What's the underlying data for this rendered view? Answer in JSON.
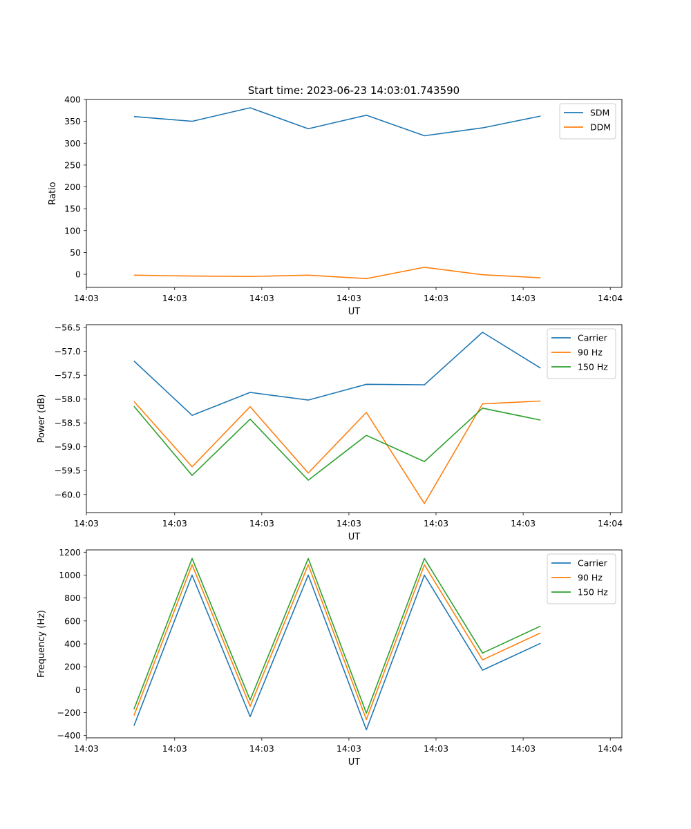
{
  "figure": {
    "title": "Start time: 2023-06-23 14:03:01.743590"
  },
  "colors": {
    "blue": "#1f77b4",
    "orange": "#ff7f0e",
    "green": "#2ca02c"
  },
  "chart_data": [
    {
      "type": "line",
      "title": "Start time: 2023-06-23 14:03:01.743590",
      "xlabel": "UT",
      "ylabel": "Ratio",
      "x": [
        1,
        2,
        3,
        4,
        5,
        6,
        7,
        8
      ],
      "xlim": [
        0.18,
        9.4
      ],
      "xticks": [
        0.18,
        1.7,
        3.2,
        4.7,
        6.2,
        7.7,
        9.2
      ],
      "xticklabels": [
        "14:03",
        "14:03",
        "14:03",
        "14:03",
        "14:03",
        "14:03",
        "14:04"
      ],
      "ylim": [
        -30,
        400
      ],
      "yticks": [
        0,
        50,
        100,
        150,
        200,
        250,
        300,
        350,
        400
      ],
      "yticklabels": [
        "0",
        "50",
        "100",
        "150",
        "200",
        "250",
        "300",
        "350",
        "400"
      ],
      "legend": "top-right",
      "series": [
        {
          "name": "SDM",
          "color": "#1f77b4",
          "values": [
            361,
            350,
            381,
            333,
            364,
            317,
            335,
            362
          ]
        },
        {
          "name": "DDM",
          "color": "#ff7f0e",
          "values": [
            -2,
            -4,
            -5,
            -2,
            -10,
            16,
            -1,
            -8
          ]
        }
      ]
    },
    {
      "type": "line",
      "xlabel": "UT",
      "ylabel": "Power (dB)",
      "x": [
        1,
        2,
        3,
        4,
        5,
        6,
        7,
        8
      ],
      "xlim": [
        0.18,
        9.4
      ],
      "xticks": [
        0.18,
        1.7,
        3.2,
        4.7,
        6.2,
        7.7,
        9.2
      ],
      "xticklabels": [
        "14:03",
        "14:03",
        "14:03",
        "14:03",
        "14:03",
        "14:03",
        "14:04"
      ],
      "ylim": [
        -60.38,
        -56.44
      ],
      "yticks": [
        -56.5,
        -57,
        -57.5,
        -58,
        -58.5,
        -59,
        -59.5,
        -60
      ],
      "yticklabels": [
        "−56.5",
        "−57.0",
        "−57.5",
        "−58.0",
        "−58.5",
        "−59.0",
        "−59.5",
        "−60.0"
      ],
      "legend": "top-right",
      "series": [
        {
          "name": "Carrier",
          "color": "#1f77b4",
          "values": [
            -57.2,
            -58.34,
            -57.86,
            -58.02,
            -57.69,
            -57.7,
            -56.6,
            -57.35
          ]
        },
        {
          "name": "90 Hz",
          "color": "#ff7f0e",
          "values": [
            -58.05,
            -59.42,
            -58.16,
            -59.55,
            -58.28,
            -60.19,
            -58.1,
            -58.04
          ]
        },
        {
          "name": "150 Hz",
          "color": "#2ca02c",
          "values": [
            -58.15,
            -59.6,
            -58.42,
            -59.7,
            -58.76,
            -59.31,
            -58.19,
            -58.44
          ]
        }
      ]
    },
    {
      "type": "line",
      "xlabel": "UT",
      "ylabel": "Frequency (Hz)",
      "x": [
        1,
        2,
        3,
        4,
        5,
        6,
        7,
        8
      ],
      "xlim": [
        0.18,
        9.4
      ],
      "xticks": [
        0.18,
        1.7,
        3.2,
        4.7,
        6.2,
        7.7,
        9.2
      ],
      "xticklabels": [
        "14:03",
        "14:03",
        "14:03",
        "14:03",
        "14:03",
        "14:03",
        "14:04"
      ],
      "ylim": [
        -420,
        1220
      ],
      "yticks": [
        -400,
        -200,
        0,
        200,
        400,
        600,
        800,
        1000,
        1200
      ],
      "yticklabels": [
        "−400",
        "−200",
        "0",
        "200",
        "400",
        "600",
        "800",
        "1000",
        "1200"
      ],
      "legend": "top-right",
      "series": [
        {
          "name": "Carrier",
          "color": "#1f77b4",
          "values": [
            -315,
            1000,
            -235,
            1000,
            -350,
            1000,
            170,
            405
          ]
        },
        {
          "name": "90 Hz",
          "color": "#ff7f0e",
          "values": [
            -225,
            1090,
            -145,
            1090,
            -260,
            1090,
            260,
            495
          ]
        },
        {
          "name": "150 Hz",
          "color": "#2ca02c",
          "values": [
            -170,
            1145,
            -90,
            1145,
            -205,
            1145,
            320,
            555
          ]
        }
      ]
    }
  ]
}
